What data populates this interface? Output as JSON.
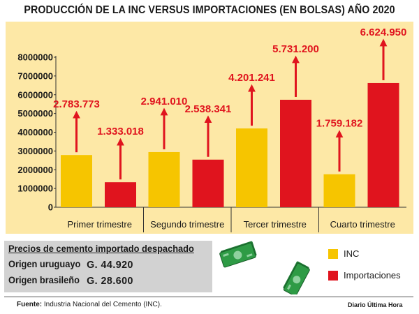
{
  "chart_data": {
    "type": "bar",
    "title": "PRODUCCIÓN DE LA INC VERSUS IMPORTACIONES (EN BOLSAS) AÑO 2020",
    "categories": [
      "Primer trimestre",
      "Segundo trimestre",
      "Tercer trimestre",
      "Cuarto trimestre"
    ],
    "series": [
      {
        "name": "INC",
        "values": [
          2783773,
          2941010,
          4201241,
          1759182
        ],
        "labels": [
          "2.783.773",
          "2.941.010",
          "4.201.241",
          "1.759.182"
        ],
        "color": "#f6c500"
      },
      {
        "name": "Importaciones",
        "values": [
          1333018,
          2538341,
          5731200,
          6624950
        ],
        "labels": [
          "1.333.018",
          "2.538.341",
          "5.731.200",
          "6.624.950"
        ],
        "color": "#e0141e"
      }
    ],
    "yticks": [
      "0",
      "1000000",
      "2000000",
      "3000000",
      "4000000",
      "5000000",
      "6000000",
      "7000000",
      "8000000"
    ],
    "ylim": [
      0,
      8000000
    ],
    "grid": false,
    "legend_position": "bottom-right",
    "label_color": "#e0141e"
  },
  "prices": {
    "title": "Precios de cemento importado despachado",
    "rows": [
      {
        "label": "Origen uruguayo",
        "value": "G. 44.920"
      },
      {
        "label": "Origen brasileño",
        "value": "G. 28.600"
      }
    ]
  },
  "footer": {
    "source_label": "Fuente:",
    "source_text": "Industria Nacional del Cemento (INC).",
    "credit": "Diario Última Hora"
  },
  "colors": {
    "panel_bg": "#fde8a6",
    "price_box_bg": "#d2d2d2",
    "money_green": "#2e9b45"
  }
}
